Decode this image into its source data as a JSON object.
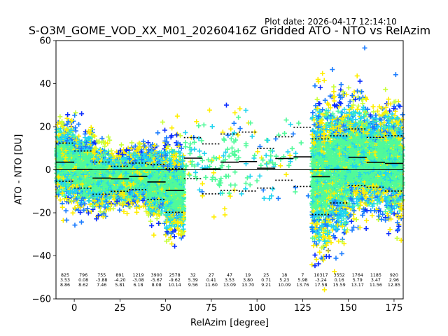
{
  "header": {
    "plot_date": "Plot date: 2026-04-17 12:14:10",
    "title": "S-O3M_GOME_VOD_XX_M01_20260416Z Gridded ATO - NTO vs RelAzim"
  },
  "chart_data": {
    "type": "scatter",
    "title": "S-O3M_GOME_VOD_XX_M01_20260416Z Gridded ATO - NTO vs RelAzim",
    "xlabel": "RelAzim [degree]",
    "ylabel": "ATO - NTO [DU]",
    "xlim": [
      -10,
      180
    ],
    "ylim": [
      -60,
      60
    ],
    "xticks": [
      0,
      25,
      50,
      75,
      100,
      125,
      150,
      175
    ],
    "yticks": [
      -60,
      -40,
      -20,
      0,
      20,
      40,
      60
    ],
    "zero_line": 0,
    "marker": "plus",
    "grid": false,
    "bins": [
      {
        "x": -5,
        "count": "825",
        "mean": "3.53",
        "std": "8.86"
      },
      {
        "x": 5,
        "count": "796",
        "mean": "0.08",
        "std": "8.62"
      },
      {
        "x": 15,
        "count": "755",
        "mean": "-3.88",
        "std": "7.46"
      },
      {
        "x": 25,
        "count": "891",
        "mean": "-4.20",
        "std": "5.81"
      },
      {
        "x": 35,
        "count": "1219",
        "mean": "-3.08",
        "std": "6.18"
      },
      {
        "x": 45,
        "count": "3900",
        "mean": "-5.67",
        "std": "8.08"
      },
      {
        "x": 55,
        "count": "2578",
        "mean": "-9.62",
        "std": "10.14"
      },
      {
        "x": 65,
        "count": "32",
        "mean": "5.39",
        "std": "9.56"
      },
      {
        "x": 75,
        "count": "27",
        "mean": "0.41",
        "std": "11.60"
      },
      {
        "x": 85,
        "count": "47",
        "mean": "3.53",
        "std": "13.09"
      },
      {
        "x": 95,
        "count": "19",
        "mean": "3.80",
        "std": "13.70"
      },
      {
        "x": 105,
        "count": "25",
        "mean": "0.71",
        "std": "9.21"
      },
      {
        "x": 115,
        "count": "18",
        "mean": "5.23",
        "std": "10.09"
      },
      {
        "x": 125,
        "count": "7",
        "mean": "5.98",
        "std": "13.76"
      },
      {
        "x": 135,
        "count": "10317",
        "mean": "-3.24",
        "std": "17.58"
      },
      {
        "x": 145,
        "count": "3552",
        "mean": "0.16",
        "std": "15.59"
      },
      {
        "x": 155,
        "count": "1764",
        "mean": "5.79",
        "std": "13.17"
      },
      {
        "x": 165,
        "count": "1185",
        "mean": "3.47",
        "std": "11.56"
      },
      {
        "x": 175,
        "count": "920",
        "mean": "2.96",
        "std": "12.85"
      }
    ],
    "point_colors": [
      "#50fa9a",
      "#21d4f0",
      "#ffee00",
      "#1a7cff",
      "#c8ff3a",
      "#0a2cff",
      "#3cf0c8"
    ]
  }
}
